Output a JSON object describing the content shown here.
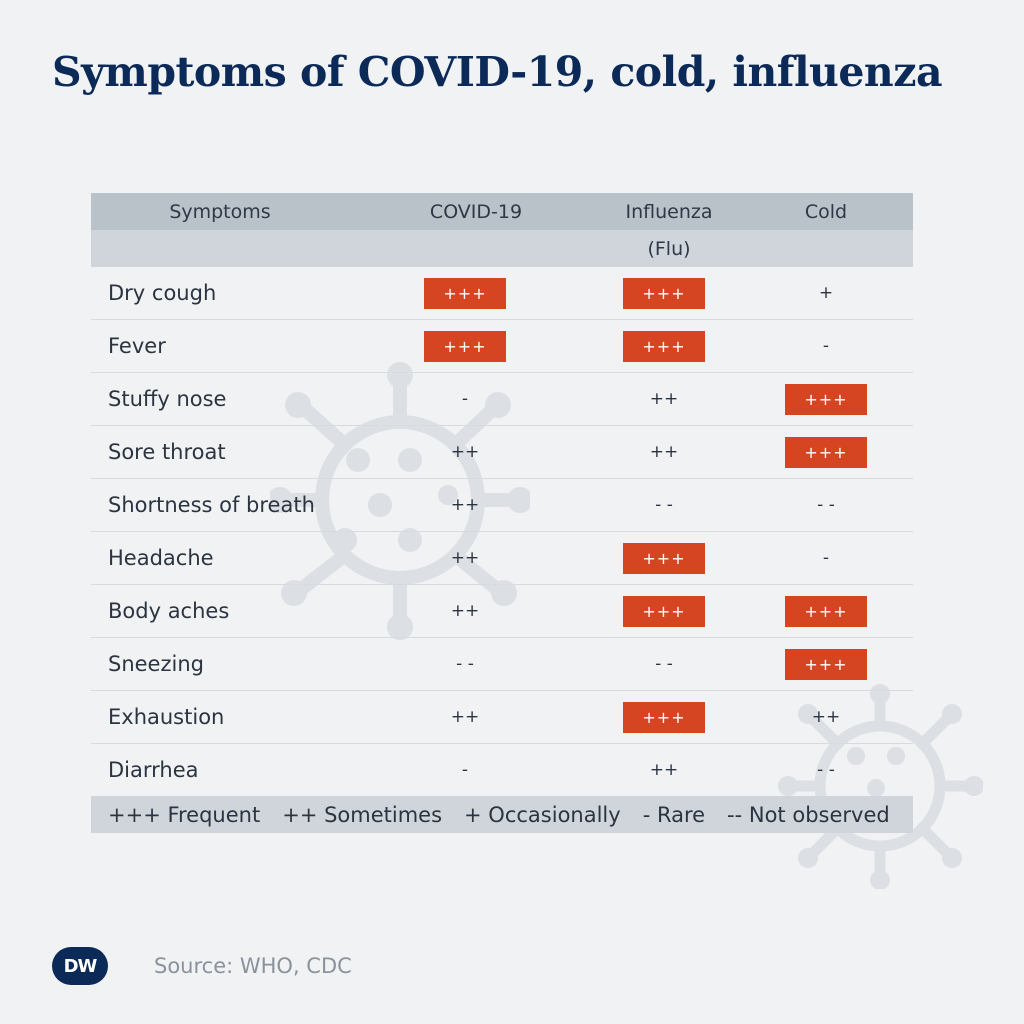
{
  "title": "Symptoms of COVID-19, cold, influenza",
  "colors": {
    "title": "#0b2a57",
    "header_dark": "#b9c1c9",
    "header_light": "#cfd5db",
    "badge": "#d64521",
    "background": "#f1f2f4"
  },
  "chart_data": {
    "type": "table",
    "columns": [
      "Symptoms",
      "COVID-19",
      "Influenza",
      "Cold"
    ],
    "column_subtitles": [
      "",
      "",
      "(Flu)",
      ""
    ],
    "rows": [
      {
        "symptom": "Dry cough",
        "values": [
          "+++",
          "+++",
          "+"
        ]
      },
      {
        "symptom": "Fever",
        "values": [
          "+++",
          "+++",
          "-"
        ]
      },
      {
        "symptom": "Stuffy nose",
        "values": [
          "-",
          "++",
          "+++"
        ]
      },
      {
        "symptom": "Sore throat",
        "values": [
          "++",
          "++",
          "+++"
        ]
      },
      {
        "symptom": "Shortness of breath",
        "values": [
          "++",
          "- -",
          "- -"
        ]
      },
      {
        "symptom": "Headache",
        "values": [
          "++",
          "+++",
          "-"
        ]
      },
      {
        "symptom": "Body aches",
        "values": [
          "++",
          "+++",
          "+++"
        ]
      },
      {
        "symptom": "Sneezing",
        "values": [
          "- -",
          "- -",
          "+++"
        ]
      },
      {
        "symptom": "Exhaustion",
        "values": [
          "++",
          "+++",
          "++"
        ]
      },
      {
        "symptom": "Diarrhea",
        "values": [
          "-",
          "++",
          "- -"
        ]
      }
    ],
    "highlight_value": "+++",
    "legend": [
      "+++ Frequent",
      "++ Sometimes",
      "+ Occasionally",
      "- Rare",
      "-- Not observed"
    ]
  },
  "footer": {
    "logo_text": "DW",
    "source": "Source: WHO, CDC"
  },
  "decor": {
    "background_icons": [
      "virus-icon",
      "virus-icon"
    ]
  }
}
